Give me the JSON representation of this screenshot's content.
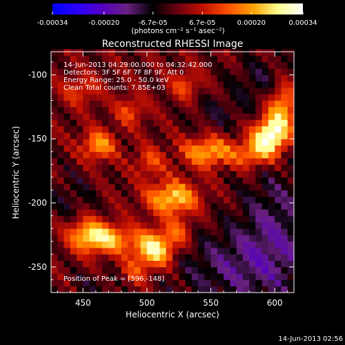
{
  "chart_data": {
    "type": "heatmap",
    "title": "Reconstructed RHESSI Image",
    "xlabel": "Heliocentric X (arcsec)",
    "ylabel": "Heliocentric Y (arcsec)",
    "xlim": [
      425,
      615
    ],
    "ylim": [
      -270,
      -82
    ],
    "x_ticks": [
      450,
      500,
      550,
      600
    ],
    "y_ticks": [
      -250,
      -200,
      -150,
      -100
    ],
    "colorbar": {
      "range": [
        -0.00034,
        0.00034
      ],
      "tick_values": [
        -0.00034,
        -0.0002,
        -6.7e-05,
        6.7e-05,
        0.0002,
        0.00034
      ],
      "tick_labels": [
        "-0.00034",
        "-0.00020",
        "-6.7e-05",
        "6.7e-05",
        "0.00020",
        "0.00034"
      ],
      "unit_label": "(photons cm⁻² s⁻¹ asec⁻²)",
      "colormap": [
        "#0000ff",
        "#2a00ff",
        "#5500c0",
        "#6a2080",
        "#000000",
        "#6a0010",
        "#c01000",
        "#ff5000",
        "#ffa000",
        "#ffff90",
        "#ffffff"
      ]
    },
    "annotations": [
      "14-Jun-2013 04:29:00.000 to 04:32:42.000",
      "Detectors: 3F 5F 6F 7F 8F 9F, Att 0",
      "Energy Range: 25.0 - 50.0 keV",
      "Clean     Total counts: 7.85E+03"
    ],
    "peak_label": "Position of Peak = [596,-148]",
    "peak": [
      596,
      -148
    ],
    "hot_regions": [
      {
        "x": 596,
        "y": -148,
        "value": 0.00034,
        "sx": 9,
        "sy": 10
      },
      {
        "x": 606,
        "y": -125,
        "value": 0.00022,
        "sx": 8,
        "sy": 14
      },
      {
        "x": 582,
        "y": -162,
        "value": 0.00016,
        "sx": 10,
        "sy": 8
      },
      {
        "x": 548,
        "y": -160,
        "value": 0.00022,
        "sx": 14,
        "sy": 8
      },
      {
        "x": 520,
        "y": -196,
        "value": 0.00025,
        "sx": 14,
        "sy": 9
      },
      {
        "x": 506,
        "y": -236,
        "value": 0.0003,
        "sx": 11,
        "sy": 10
      },
      {
        "x": 470,
        "y": -228,
        "value": 0.00022,
        "sx": 14,
        "sy": 8
      },
      {
        "x": 452,
        "y": -224,
        "value": 0.00018,
        "sx": 10,
        "sy": 9
      },
      {
        "x": 462,
        "y": -155,
        "value": 0.0002,
        "sx": 9,
        "sy": 8
      },
      {
        "x": 487,
        "y": -128,
        "value": 0.00012,
        "sx": 8,
        "sy": 8
      },
      {
        "x": 448,
        "y": -112,
        "value": 0.00011,
        "sx": 10,
        "sy": 8
      },
      {
        "x": 530,
        "y": -108,
        "value": 0.00012,
        "sx": 8,
        "sy": 8
      },
      {
        "x": 502,
        "y": -168,
        "value": 0.00012,
        "sx": 8,
        "sy": 8
      },
      {
        "x": 490,
        "y": -255,
        "value": 0.0001,
        "sx": 8,
        "sy": 8
      },
      {
        "x": 525,
        "y": -222,
        "value": 0.00012,
        "sx": 8,
        "sy": 8
      }
    ],
    "cold_regions": [
      {
        "x": 575,
        "y": -250,
        "value": -0.00012,
        "sx": 40,
        "sy": 22
      },
      {
        "x": 600,
        "y": -210,
        "value": -0.0001,
        "sx": 20,
        "sy": 30
      },
      {
        "x": 590,
        "y": -105,
        "value": -8e-05,
        "sx": 18,
        "sy": 14
      },
      {
        "x": 555,
        "y": -130,
        "value": -6e-05,
        "sx": 16,
        "sy": 10
      },
      {
        "x": 440,
        "y": -195,
        "value": -6e-05,
        "sx": 14,
        "sy": 14
      },
      {
        "x": 460,
        "y": -265,
        "value": -5e-05,
        "sx": 16,
        "sy": 8
      }
    ],
    "grid": false
  },
  "footer": {
    "timestamp": "14-Jun-2013 02:56"
  }
}
